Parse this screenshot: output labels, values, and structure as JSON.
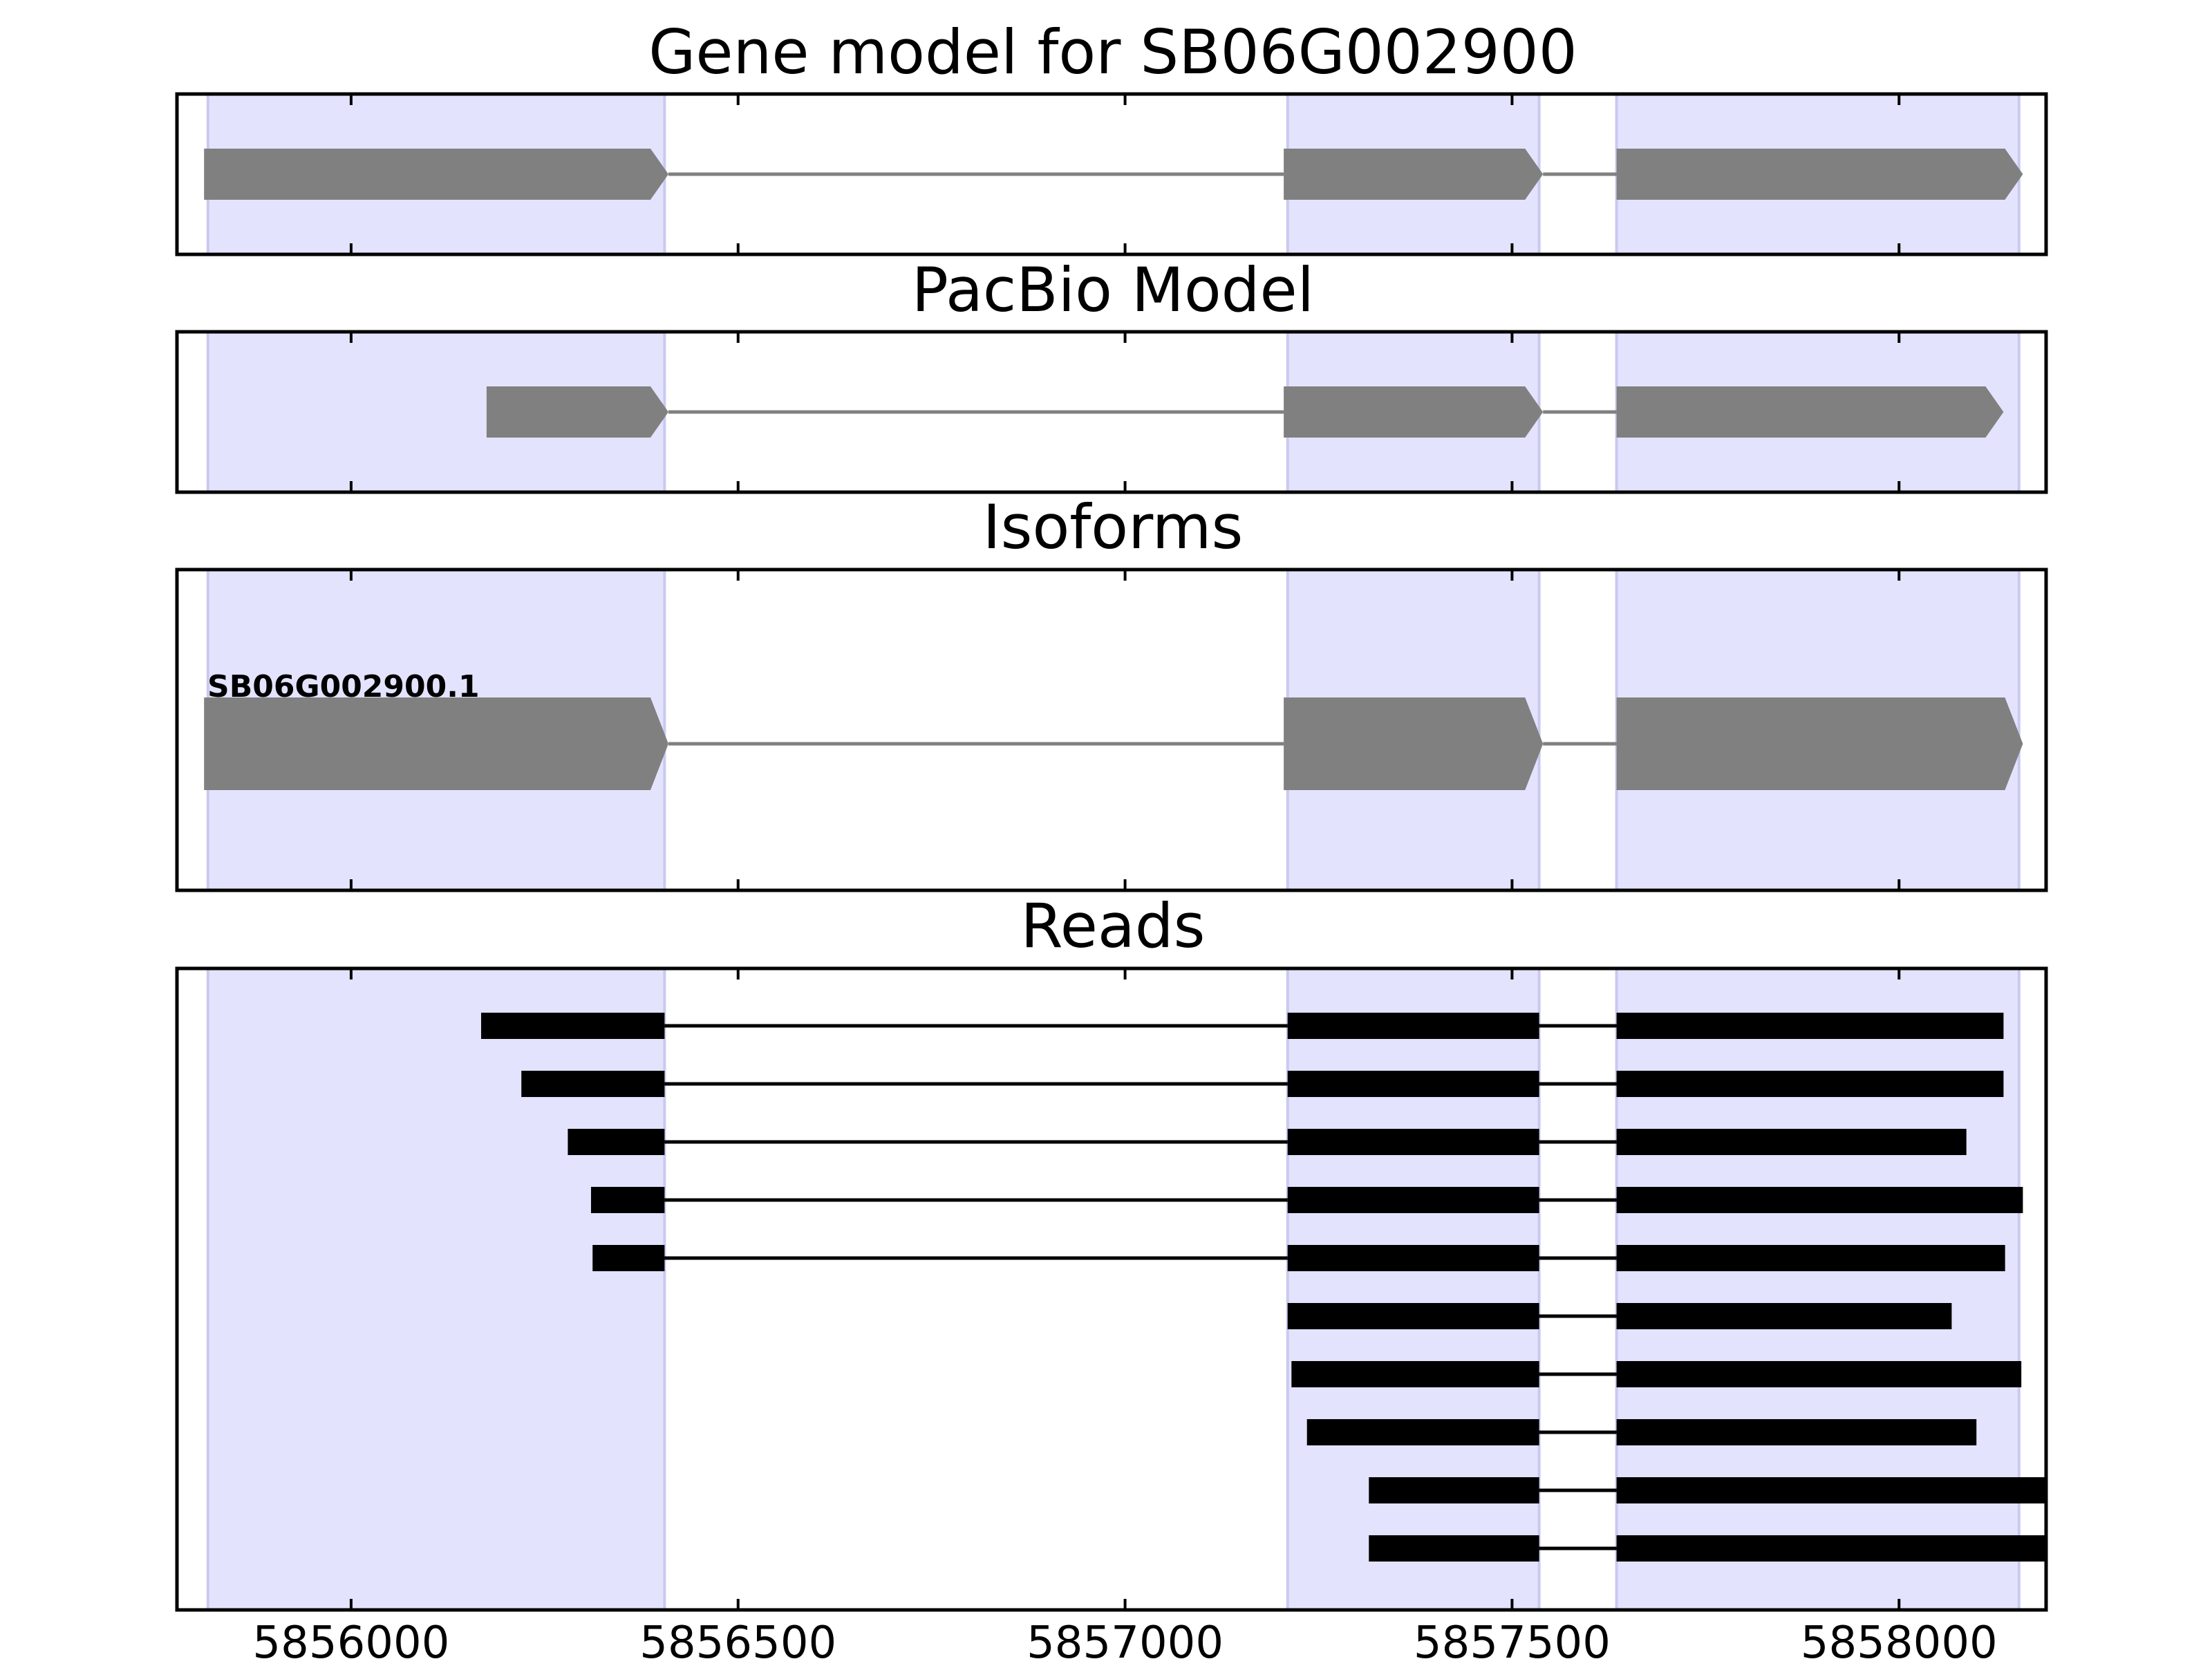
{
  "chart_data": {
    "type": "gene-track",
    "title": "",
    "xlabel": "",
    "ylabel": "",
    "xlim": [
      5855775,
      5858190
    ],
    "x_ticks": [
      5856000,
      5856500,
      5857000,
      5857500,
      5858000
    ],
    "x_tick_labels": [
      "5856000",
      "5856500",
      "5857000",
      "5857500",
      "5858000"
    ],
    "colors": {
      "exon_shade": "#e3e3fd",
      "exon_shade_edge": "#c9c9f0",
      "model_fill": "#808080",
      "intron_model": "#808080",
      "read": "#000000",
      "frame": "#000000"
    },
    "shaded_regions": [
      [
        5855815,
        5856405
      ],
      [
        5857210,
        5857535
      ],
      [
        5857635,
        5858155
      ]
    ],
    "panels": [
      {
        "key": "gene_model",
        "title": "Gene model for SB06G002900",
        "strand": "+",
        "exons": [
          [
            5855810,
            5856410
          ],
          [
            5857205,
            5857540
          ],
          [
            5857635,
            5858160
          ]
        ]
      },
      {
        "key": "pacbio",
        "title": "PacBio Model",
        "strand": "+",
        "exons": [
          [
            5856175,
            5856410
          ],
          [
            5857205,
            5857540
          ],
          [
            5857635,
            5858135
          ]
        ]
      },
      {
        "key": "isoforms",
        "title": "Isoforms",
        "strand": "+",
        "isoforms": [
          {
            "label": "SB06G002900.1",
            "exons": [
              [
                5855810,
                5856410
              ],
              [
                5857205,
                5857540
              ],
              [
                5857635,
                5858160
              ]
            ]
          }
        ]
      },
      {
        "key": "reads",
        "title": "Reads",
        "reads": [
          [
            [
              5856168,
              5856405
            ],
            [
              5857210,
              5857535
            ],
            [
              5857635,
              5858135
            ]
          ],
          [
            [
              5856220,
              5856405
            ],
            [
              5857210,
              5857535
            ],
            [
              5857635,
              5858135
            ]
          ],
          [
            [
              5856280,
              5856405
            ],
            [
              5857210,
              5857535
            ],
            [
              5857635,
              5858087
            ]
          ],
          [
            [
              5856310,
              5856405
            ],
            [
              5857210,
              5857535
            ],
            [
              5857635,
              5858160
            ]
          ],
          [
            [
              5856312,
              5856405
            ],
            [
              5857210,
              5857535
            ],
            [
              5857635,
              5858137
            ]
          ],
          [
            [
              5857210,
              5857535
            ],
            [
              5857635,
              5858068
            ]
          ],
          [
            [
              5857215,
              5857535
            ],
            [
              5857635,
              5858158
            ]
          ],
          [
            [
              5857235,
              5857535
            ],
            [
              5857635,
              5858100
            ]
          ],
          [
            [
              5857315,
              5857535
            ],
            [
              5857635,
              5858190
            ]
          ],
          [
            [
              5857315,
              5857535
            ],
            [
              5857635,
              5858190
            ]
          ]
        ]
      }
    ]
  }
}
